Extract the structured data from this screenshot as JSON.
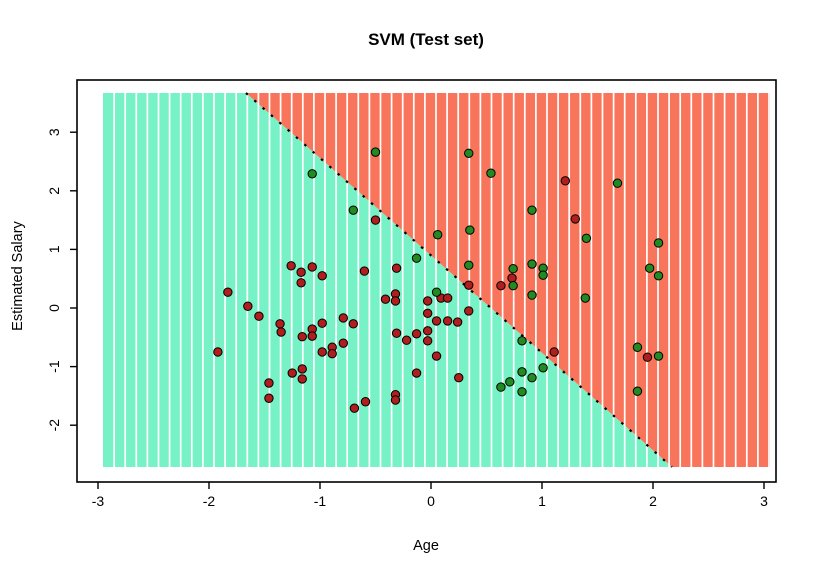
{
  "title": "SVM (Test set)",
  "chart_data": {
    "type": "scatter",
    "title": "SVM (Test set)",
    "xlabel": "Age",
    "ylabel": "Estimated Salary",
    "xlim": [
      -3.07,
      3.07
    ],
    "ylim": [
      -2.97,
      3.89
    ],
    "x_ticks": [
      -3,
      -2,
      -1,
      0,
      1,
      2,
      3
    ],
    "y_ticks": [
      3,
      2,
      1,
      0,
      -1,
      -2
    ],
    "grid": false,
    "legend": "none",
    "region_extent": {
      "x": [
        -2.955,
        3.054
      ],
      "y": [
        -2.713,
        3.669
      ]
    },
    "decision_boundary": {
      "type": "line",
      "x1": -1.667,
      "y1": 3.669,
      "x2": 2.171,
      "y2": -2.713,
      "style": "dashed"
    },
    "stripe_step_x": 0.1,
    "colors": {
      "region_class0": "#76F2C6",
      "region_class1": "#F8755B",
      "stripe": "#FFFFFF",
      "point_class0": "#B01E1E",
      "point_class1": "#218B21",
      "point_stroke": "#000000",
      "boundary": "#000000",
      "axis": "#000000"
    },
    "series": [
      {
        "name": "class-0-red",
        "color_key": "point_class0",
        "points": [
          [
            -0.5,
            1.5
          ],
          [
            1.21,
            2.17
          ],
          [
            1.3,
            1.52
          ],
          [
            -1.26,
            0.72
          ],
          [
            -1.07,
            0.7
          ],
          [
            -1.17,
            0.61
          ],
          [
            -0.98,
            0.55
          ],
          [
            -1.17,
            0.43
          ],
          [
            -0.6,
            0.63
          ],
          [
            -0.31,
            0.68
          ],
          [
            -1.83,
            0.27
          ],
          [
            -1.65,
            0.03
          ],
          [
            -1.55,
            -0.14
          ],
          [
            -1.36,
            -0.27
          ],
          [
            -1.35,
            -0.41
          ],
          [
            -1.16,
            -0.49
          ],
          [
            -1.07,
            -0.36
          ],
          [
            -1.07,
            -0.48
          ],
          [
            -0.98,
            -0.26
          ],
          [
            -0.79,
            -0.17
          ],
          [
            -0.7,
            -0.27
          ],
          [
            -1.92,
            -0.75
          ],
          [
            -0.98,
            -0.75
          ],
          [
            -0.89,
            -0.67
          ],
          [
            -0.89,
            -0.78
          ],
          [
            -0.79,
            -0.6
          ],
          [
            -1.25,
            -1.11
          ],
          [
            -1.16,
            -1.04
          ],
          [
            -1.16,
            -1.21
          ],
          [
            -1.46,
            -1.28
          ],
          [
            -1.46,
            -1.54
          ],
          [
            -0.69,
            -1.71
          ],
          [
            -0.59,
            -1.6
          ],
          [
            -0.41,
            0.15
          ],
          [
            -0.32,
            0.24
          ],
          [
            -0.32,
            0.12
          ],
          [
            -0.03,
            0.12
          ],
          [
            0.09,
            0.17
          ],
          [
            0.15,
            0.17
          ],
          [
            -0.03,
            -0.09
          ],
          [
            0.05,
            -0.22
          ],
          [
            0.15,
            -0.22
          ],
          [
            0.24,
            -0.24
          ],
          [
            -0.03,
            -0.39
          ],
          [
            -0.13,
            -0.44
          ],
          [
            -0.31,
            -0.43
          ],
          [
            -0.22,
            -0.55
          ],
          [
            -0.03,
            -0.56
          ],
          [
            0.05,
            -0.82
          ],
          [
            -0.13,
            -1.11
          ],
          [
            0.25,
            -1.19
          ],
          [
            -0.32,
            -1.48
          ],
          [
            -0.32,
            -1.57
          ],
          [
            0.34,
            0.39
          ],
          [
            0.63,
            0.38
          ],
          [
            0.73,
            0.51
          ],
          [
            0.34,
            -0.05
          ],
          [
            1.11,
            -0.75
          ],
          [
            1.95,
            -0.84
          ]
        ]
      },
      {
        "name": "class-1-green",
        "color_key": "point_class1",
        "points": [
          [
            -1.07,
            2.29
          ],
          [
            -0.5,
            2.66
          ],
          [
            -0.7,
            1.67
          ],
          [
            0.34,
            2.64
          ],
          [
            0.54,
            2.3
          ],
          [
            1.68,
            2.13
          ],
          [
            0.91,
            1.67
          ],
          [
            1.4,
            1.19
          ],
          [
            2.05,
            1.11
          ],
          [
            0.06,
            1.25
          ],
          [
            0.35,
            1.33
          ],
          [
            -0.13,
            0.85
          ],
          [
            0.34,
            0.73
          ],
          [
            0.74,
            0.67
          ],
          [
            0.91,
            0.75
          ],
          [
            1.01,
            0.68
          ],
          [
            1.01,
            0.56
          ],
          [
            1.97,
            0.68
          ],
          [
            2.05,
            0.55
          ],
          [
            0.74,
            0.38
          ],
          [
            0.91,
            0.22
          ],
          [
            1.39,
            0.17
          ],
          [
            0.05,
            0.27
          ],
          [
            0.82,
            -0.56
          ],
          [
            1.01,
            -1.02
          ],
          [
            0.82,
            -1.09
          ],
          [
            0.91,
            -1.19
          ],
          [
            0.71,
            -1.26
          ],
          [
            0.63,
            -1.35
          ],
          [
            0.82,
            -1.43
          ],
          [
            1.86,
            -0.67
          ],
          [
            2.05,
            -0.82
          ],
          [
            1.86,
            -1.42
          ]
        ]
      }
    ]
  }
}
